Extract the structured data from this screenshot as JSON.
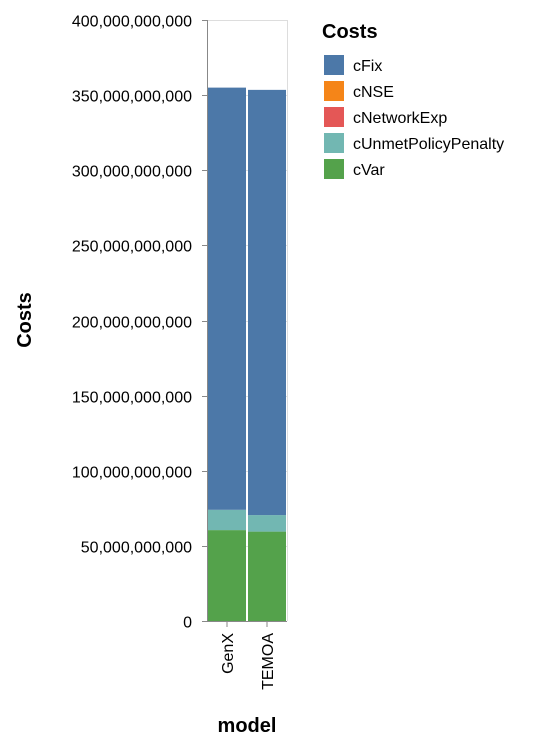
{
  "chart_data": {
    "type": "bar",
    "stacked": true,
    "categories": [
      "GenX",
      "TEMOA"
    ],
    "series": [
      {
        "name": "cVar",
        "color": "#54a24b",
        "values": [
          60500000000,
          59500000000
        ]
      },
      {
        "name": "cUnmetPolicyPenalty",
        "color": "#72b7b2",
        "values": [
          13500000000,
          11000000000
        ]
      },
      {
        "name": "cNetworkExp",
        "color": "#e45756",
        "values": [
          0,
          0
        ]
      },
      {
        "name": "cNSE",
        "color": "#f58518",
        "values": [
          0,
          0
        ]
      },
      {
        "name": "cFix",
        "color": "#4c78a8",
        "values": [
          281000000000,
          283000000000
        ]
      }
    ],
    "ylim": [
      0,
      400000000000
    ],
    "yticks": [
      0,
      50000000000,
      100000000000,
      150000000000,
      200000000000,
      250000000000,
      300000000000,
      350000000000,
      400000000000
    ],
    "ytick_labels": [
      "0",
      "50,000,000,000",
      "100,000,000,000",
      "150,000,000,000",
      "200,000,000,000",
      "250,000,000,000",
      "300,000,000,000",
      "350,000,000,000",
      "400,000,000,000"
    ],
    "xlabel": "model",
    "ylabel": "Costs",
    "grid": true,
    "legend": {
      "title": "Costs",
      "position": "right",
      "entries": [
        {
          "label": "cFix",
          "color": "#4c78a8"
        },
        {
          "label": "cNSE",
          "color": "#f58518"
        },
        {
          "label": "cNetworkExp",
          "color": "#e45756"
        },
        {
          "label": "cUnmetPolicyPenalty",
          "color": "#72b7b2"
        },
        {
          "label": "cVar",
          "color": "#54a24b"
        }
      ]
    }
  }
}
